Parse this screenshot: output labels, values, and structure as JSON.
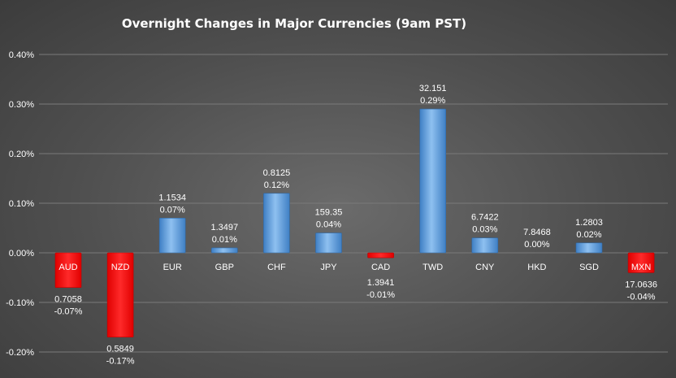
{
  "chart_data": {
    "type": "bar",
    "title": "Overnight Changes in Major Currencies (9am PST)",
    "categories": [
      "AUD",
      "NZD",
      "EUR",
      "GBP",
      "CHF",
      "JPY",
      "CAD",
      "TWD",
      "CNY",
      "HKD",
      "SGD",
      "MXN"
    ],
    "values": [
      -0.07,
      -0.17,
      0.07,
      0.01,
      0.12,
      0.04,
      -0.01,
      0.29,
      0.03,
      0.0,
      0.02,
      -0.04
    ],
    "rates": [
      "0.7058",
      "0.5849",
      "1.1534",
      "1.3497",
      "0.8125",
      "159.35",
      "1.3941",
      "32.151",
      "6.7422",
      "7.8468",
      "1.2803",
      "17.0636"
    ],
    "pct_labels": [
      "-0.07%",
      "-0.17%",
      "0.07%",
      "0.01%",
      "0.12%",
      "0.04%",
      "-0.01%",
      "0.29%",
      "0.03%",
      "0.00%",
      "0.02%",
      "-0.04%"
    ],
    "yticks": [
      "0.40%",
      "0.30%",
      "0.20%",
      "0.10%",
      "0.00%",
      "-0.10%",
      "-0.20%"
    ],
    "ytick_values": [
      0.4,
      0.3,
      0.2,
      0.1,
      0.0,
      -0.1,
      -0.2
    ],
    "ylim": [
      -0.2,
      0.4
    ],
    "grid": true,
    "legend": "none",
    "colors": {
      "positive": "#5b9bd5",
      "negative": "#ff0000",
      "background": "#555555",
      "grid": "#7a7a7a"
    }
  }
}
